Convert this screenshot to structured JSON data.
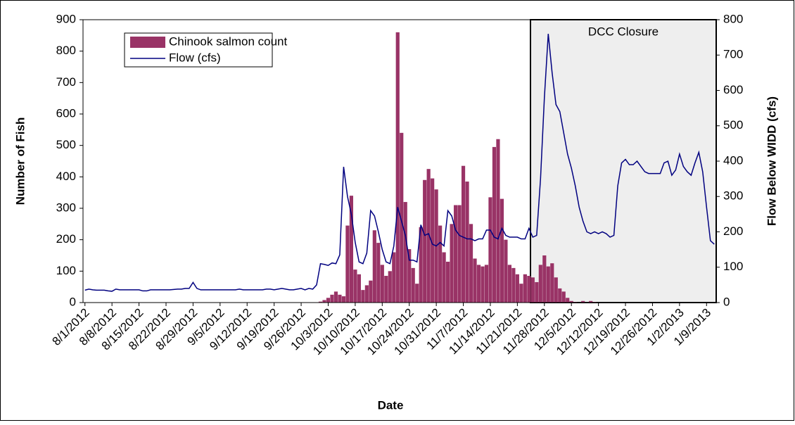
{
  "chart_data": {
    "type": "bar",
    "y_label": "Number of Fish",
    "y2_label": "Flow Below WIDD (cfs)",
    "x_label": "Date",
    "annotation": "DCC Closure",
    "categories": [
      "8/1/2012",
      null,
      null,
      null,
      null,
      null,
      null,
      "8/8/2012",
      null,
      null,
      null,
      null,
      null,
      null,
      "8/15/2012",
      null,
      null,
      null,
      null,
      null,
      null,
      "8/22/2012",
      null,
      null,
      null,
      null,
      null,
      null,
      "8/29/2012",
      null,
      null,
      null,
      null,
      null,
      null,
      "9/5/2012",
      null,
      null,
      null,
      null,
      null,
      null,
      "9/12/2012",
      null,
      null,
      null,
      null,
      null,
      null,
      "9/19/2012",
      null,
      null,
      null,
      null,
      null,
      null,
      "9/26/2012",
      null,
      null,
      null,
      null,
      null,
      null,
      "10/3/2012",
      null,
      null,
      null,
      null,
      null,
      null,
      "10/10/2012",
      null,
      null,
      null,
      null,
      null,
      null,
      "10/17/2012",
      null,
      null,
      null,
      null,
      null,
      null,
      "10/24/2012",
      null,
      null,
      null,
      null,
      null,
      null,
      "10/31/2012",
      null,
      null,
      null,
      null,
      null,
      null,
      "11/7/2012",
      null,
      null,
      null,
      null,
      null,
      null,
      "11/14/2012",
      null,
      null,
      null,
      null,
      null,
      null,
      "11/21/2012",
      null,
      null,
      null,
      null,
      null,
      null,
      "11/28/2012",
      null,
      null,
      null,
      null,
      null,
      null,
      "12/5/2012",
      null,
      null,
      null,
      null,
      null,
      null,
      "12/12/2012",
      null,
      null,
      null,
      null,
      null,
      null,
      "12/19/2012",
      null,
      null,
      null,
      null,
      null,
      null,
      "12/26/2012",
      null,
      null,
      null,
      null,
      null,
      null,
      "1/2/2013",
      null,
      null,
      null,
      null,
      null,
      null,
      "1/9/2013",
      null,
      null
    ],
    "series": [
      {
        "name": "Chinook salmon count",
        "type": "bar",
        "color": "#993366",
        "values": [
          0,
          0,
          0,
          0,
          0,
          0,
          0,
          0,
          0,
          0,
          0,
          0,
          0,
          0,
          0,
          0,
          0,
          0,
          0,
          0,
          0,
          0,
          0,
          0,
          0,
          0,
          0,
          0,
          0,
          0,
          0,
          0,
          0,
          0,
          0,
          0,
          0,
          0,
          0,
          0,
          0,
          0,
          0,
          0,
          0,
          0,
          0,
          0,
          0,
          0,
          0,
          0,
          0,
          0,
          0,
          0,
          0,
          0,
          0,
          0,
          0,
          3,
          8,
          15,
          25,
          35,
          25,
          20,
          245,
          340,
          105,
          90,
          40,
          55,
          70,
          230,
          190,
          120,
          85,
          100,
          160,
          860,
          540,
          320,
          170,
          110,
          60,
          240,
          390,
          425,
          395,
          360,
          245,
          160,
          130,
          250,
          310,
          310,
          435,
          385,
          250,
          140,
          120,
          115,
          120,
          335,
          495,
          520,
          330,
          200,
          120,
          110,
          90,
          60,
          90,
          85,
          80,
          65,
          120,
          150,
          115,
          125,
          80,
          45,
          35,
          15,
          5,
          2,
          0,
          5,
          0,
          5,
          2,
          0,
          0,
          0,
          0,
          0,
          0,
          0,
          0,
          0,
          0,
          0,
          0,
          0,
          0,
          0,
          0,
          0,
          0,
          0,
          0,
          0,
          0,
          0,
          0,
          0,
          0,
          0,
          0,
          0,
          0,
          0
        ]
      },
      {
        "name": "Flow (cfs)",
        "type": "line",
        "axis": "y2",
        "color": "#000080",
        "values": [
          35,
          38,
          36,
          35,
          35,
          35,
          33,
          32,
          38,
          36,
          36,
          36,
          36,
          36,
          36,
          33,
          33,
          36,
          36,
          36,
          36,
          36,
          36,
          37,
          38,
          38,
          40,
          40,
          57,
          40,
          36,
          36,
          36,
          36,
          36,
          36,
          36,
          36,
          36,
          36,
          38,
          36,
          36,
          36,
          36,
          36,
          36,
          38,
          38,
          36,
          38,
          40,
          38,
          36,
          36,
          38,
          40,
          36,
          40,
          38,
          50,
          110,
          108,
          105,
          112,
          110,
          135,
          384,
          300,
          250,
          170,
          115,
          110,
          140,
          260,
          245,
          200,
          150,
          115,
          110,
          160,
          270,
          230,
          190,
          120,
          120,
          115,
          220,
          190,
          195,
          165,
          160,
          170,
          160,
          260,
          245,
          205,
          190,
          185,
          180,
          180,
          175,
          180,
          180,
          205,
          205,
          185,
          180,
          210,
          190,
          185,
          185,
          185,
          180,
          180,
          210,
          185,
          190,
          350,
          580,
          760,
          650,
          560,
          540,
          480,
          420,
          380,
          330,
          270,
          230,
          200,
          195,
          200,
          195,
          200,
          195,
          185,
          190,
          330,
          395,
          405,
          390,
          390,
          400,
          385,
          370,
          365,
          365,
          365,
          365,
          395,
          400,
          360,
          375,
          420,
          385,
          370,
          360,
          395,
          425,
          370,
          270,
          175,
          165
        ]
      }
    ],
    "ylim": [
      0,
      900
    ],
    "yticks": [
      0,
      100,
      200,
      300,
      400,
      500,
      600,
      700,
      800,
      900
    ],
    "y2lim": [
      0,
      800
    ],
    "y2ticks": [
      0,
      100,
      200,
      300,
      400,
      500,
      600,
      700,
      800
    ],
    "legend": "top-left"
  }
}
